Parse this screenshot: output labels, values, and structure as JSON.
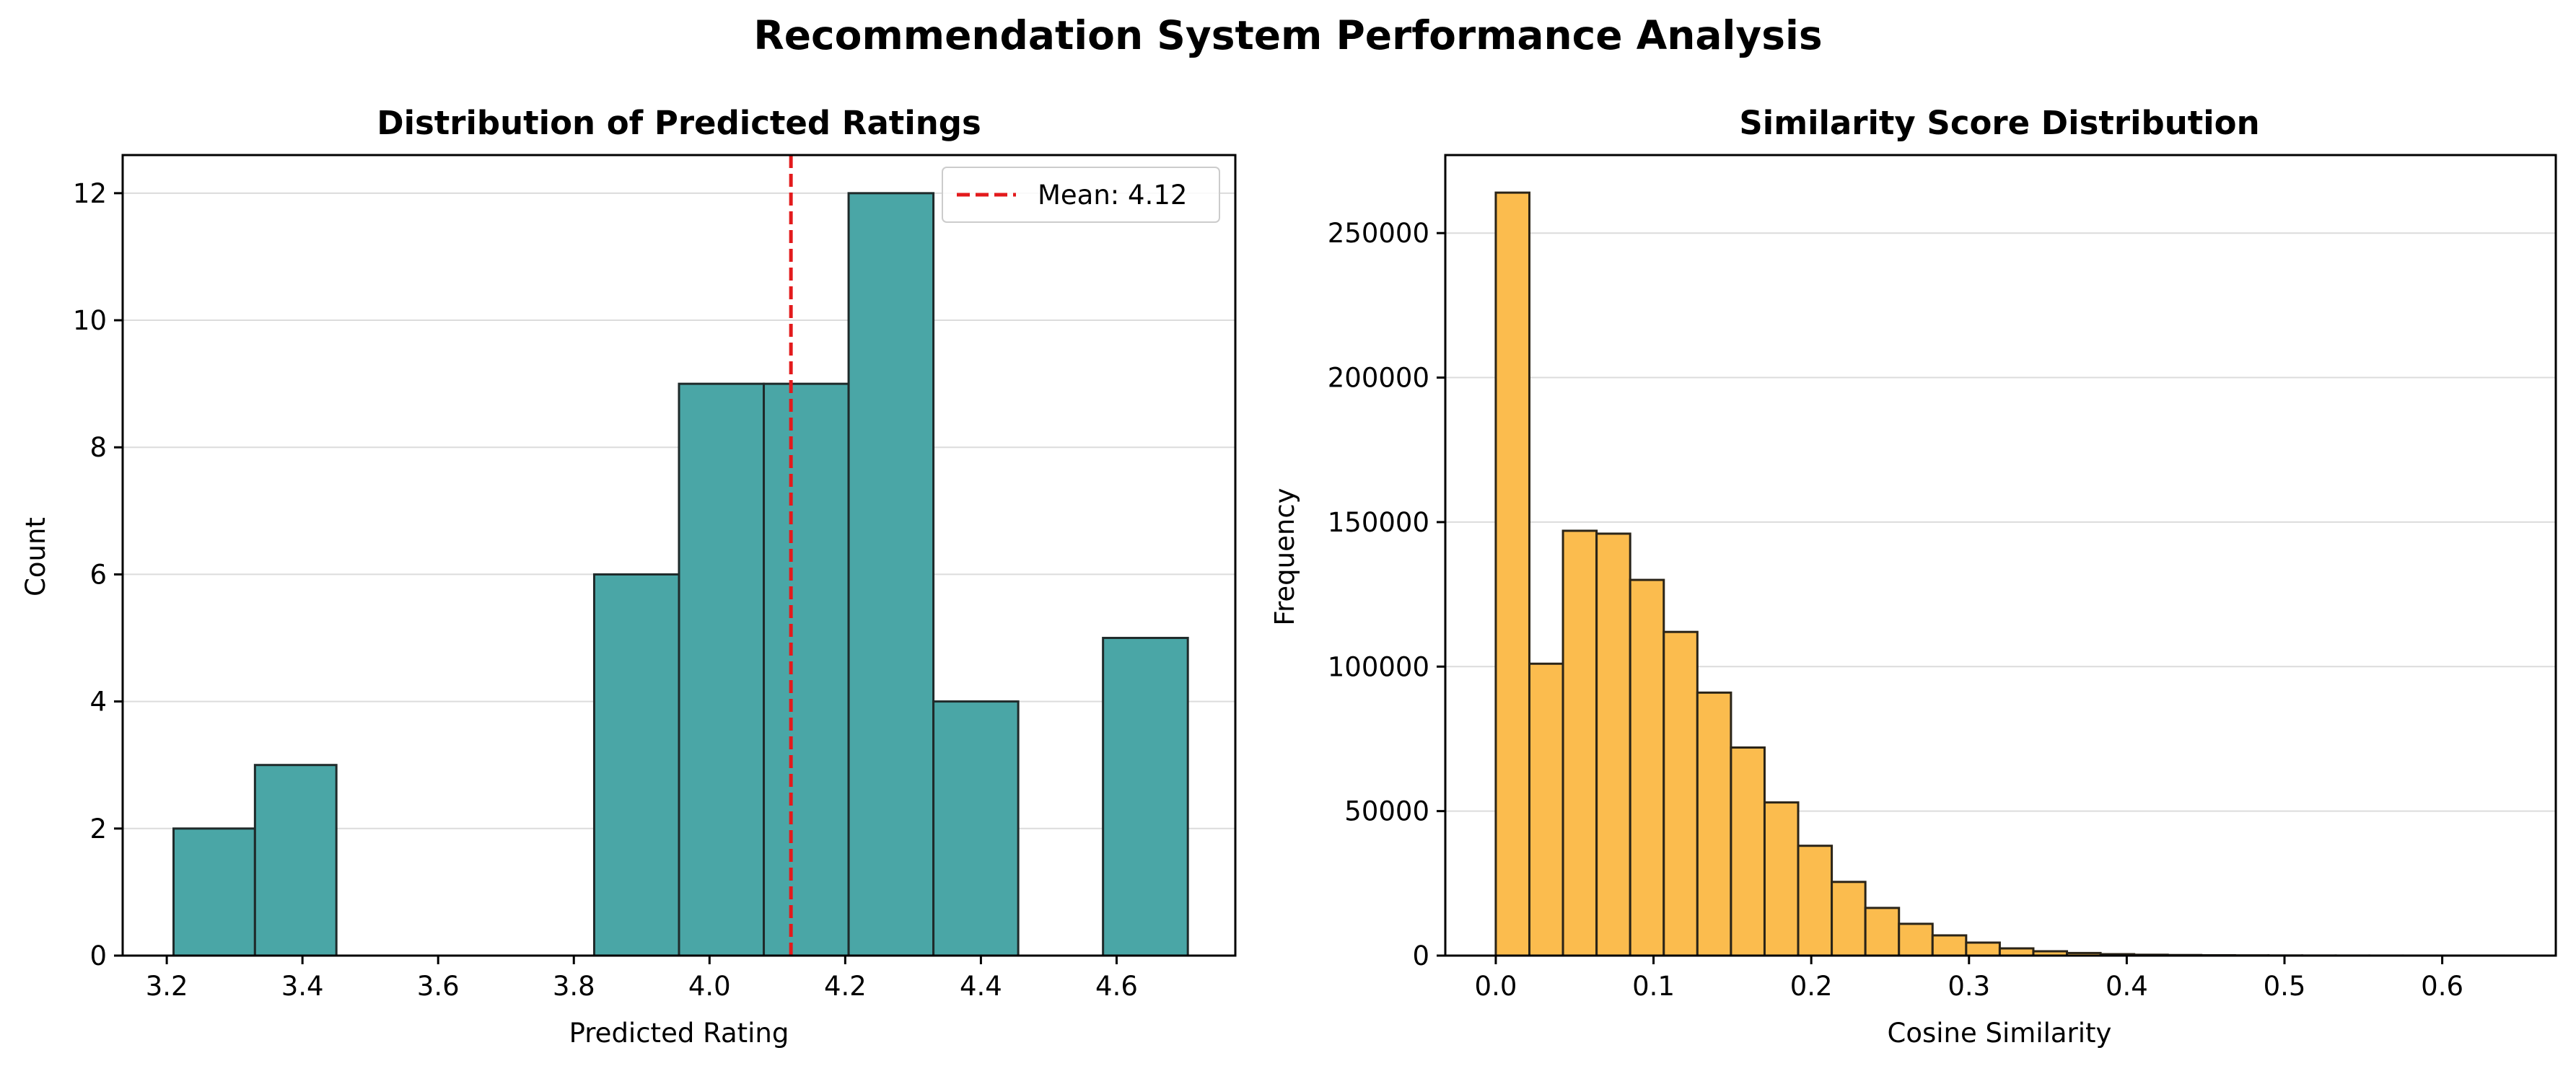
{
  "figure": {
    "title": "Recommendation System Performance Analysis"
  },
  "chart_data": [
    {
      "type": "bar",
      "title": "Distribution of Predicted Ratings",
      "xlabel": "Predicted Rating",
      "ylabel": "Count",
      "xlim": [
        3.135,
        4.775
      ],
      "ylim": [
        0,
        12.6
      ],
      "xticks": [
        "3.2",
        "3.4",
        "3.6",
        "3.8",
        "4.0",
        "4.2",
        "4.4",
        "4.6"
      ],
      "xtick_values": [
        3.2,
        3.4,
        3.6,
        3.8,
        4.0,
        4.2,
        4.4,
        4.6
      ],
      "yticks": [
        "0",
        "2",
        "4",
        "6",
        "8",
        "10",
        "12"
      ],
      "ytick_values": [
        0,
        2,
        4,
        6,
        8,
        10,
        12
      ],
      "bins": [
        {
          "x0": 3.21,
          "x1": 3.33,
          "value": 2
        },
        {
          "x0": 3.33,
          "x1": 3.45,
          "value": 3
        },
        {
          "x0": 3.83,
          "x1": 3.955,
          "value": 6
        },
        {
          "x0": 3.955,
          "x1": 4.08,
          "value": 9
        },
        {
          "x0": 4.08,
          "x1": 4.205,
          "value": 9
        },
        {
          "x0": 4.205,
          "x1": 4.33,
          "value": 12
        },
        {
          "x0": 4.33,
          "x1": 4.455,
          "value": 4
        },
        {
          "x0": 4.58,
          "x1": 4.705,
          "value": 5
        }
      ],
      "mean_line": {
        "x": 4.12,
        "label": "Mean: 4.12",
        "color": "#e31a1c"
      },
      "bar_color": "#4aa6a6",
      "grid": "y",
      "legend": "top-right"
    },
    {
      "type": "bar",
      "title": "Similarity Score Distribution",
      "xlabel": "Cosine Similarity",
      "ylabel": "Frequency",
      "xlim": [
        -0.032,
        0.672
      ],
      "ylim": [
        0,
        277000
      ],
      "xticks": [
        "0.0",
        "0.1",
        "0.2",
        "0.3",
        "0.4",
        "0.5",
        "0.6"
      ],
      "xtick_values": [
        0,
        0.1,
        0.2,
        0.3,
        0.4,
        0.5,
        0.6
      ],
      "yticks": [
        "0",
        "50000",
        "100000",
        "150000",
        "200000",
        "250000"
      ],
      "ytick_values": [
        0,
        50000,
        100000,
        150000,
        200000,
        250000
      ],
      "bin_start": 0,
      "bin_width": 0.0213,
      "values": [
        264000,
        101000,
        147000,
        146000,
        130000,
        112000,
        91000,
        72000,
        53000,
        38000,
        25500,
        16500,
        11000,
        7000,
        4500,
        2500,
        1500,
        900,
        500,
        300,
        200,
        120,
        80,
        50,
        30,
        20,
        10,
        5,
        3,
        2
      ],
      "bar_color": "#fbbc4e",
      "grid": "y"
    }
  ]
}
